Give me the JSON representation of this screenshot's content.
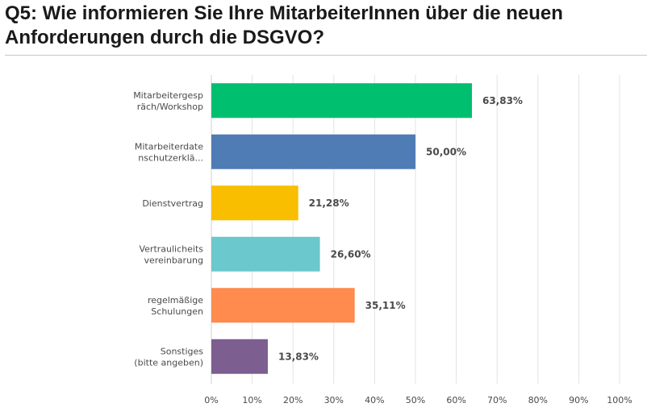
{
  "title": "Q5: Wie informieren Sie Ihre MitarbeiterInnen über die neuen Anforderungen durch die DSGVO?",
  "chart_data": {
    "type": "bar",
    "orientation": "horizontal",
    "categories": [
      [
        "Mitarbeitergesp",
        "räch/Workshop"
      ],
      [
        "Mitarbeiterdate",
        "nschutzerklä..."
      ],
      [
        "Dienstvertrag"
      ],
      [
        "Vertraulicheits",
        "vereinbarung"
      ],
      [
        "regelmäßige",
        "Schulungen"
      ],
      [
        "Sonstiges",
        "(bitte angeben)"
      ]
    ],
    "values": [
      63.83,
      50.0,
      21.28,
      26.6,
      35.11,
      13.83
    ],
    "value_labels": [
      "63,83%",
      "50,00%",
      "21,28%",
      "26,60%",
      "35,11%",
      "13,83%"
    ],
    "colors": [
      "#00bf6f",
      "#507cb6",
      "#f9be00",
      "#6bc8cd",
      "#ff8b4f",
      "#7d5e90"
    ],
    "xlim": [
      0,
      100
    ],
    "x_ticks": [
      "0%",
      "10%",
      "20%",
      "30%",
      "40%",
      "50%",
      "60%",
      "70%",
      "80%",
      "90%",
      "100%"
    ],
    "grid": true,
    "legend": "none"
  }
}
